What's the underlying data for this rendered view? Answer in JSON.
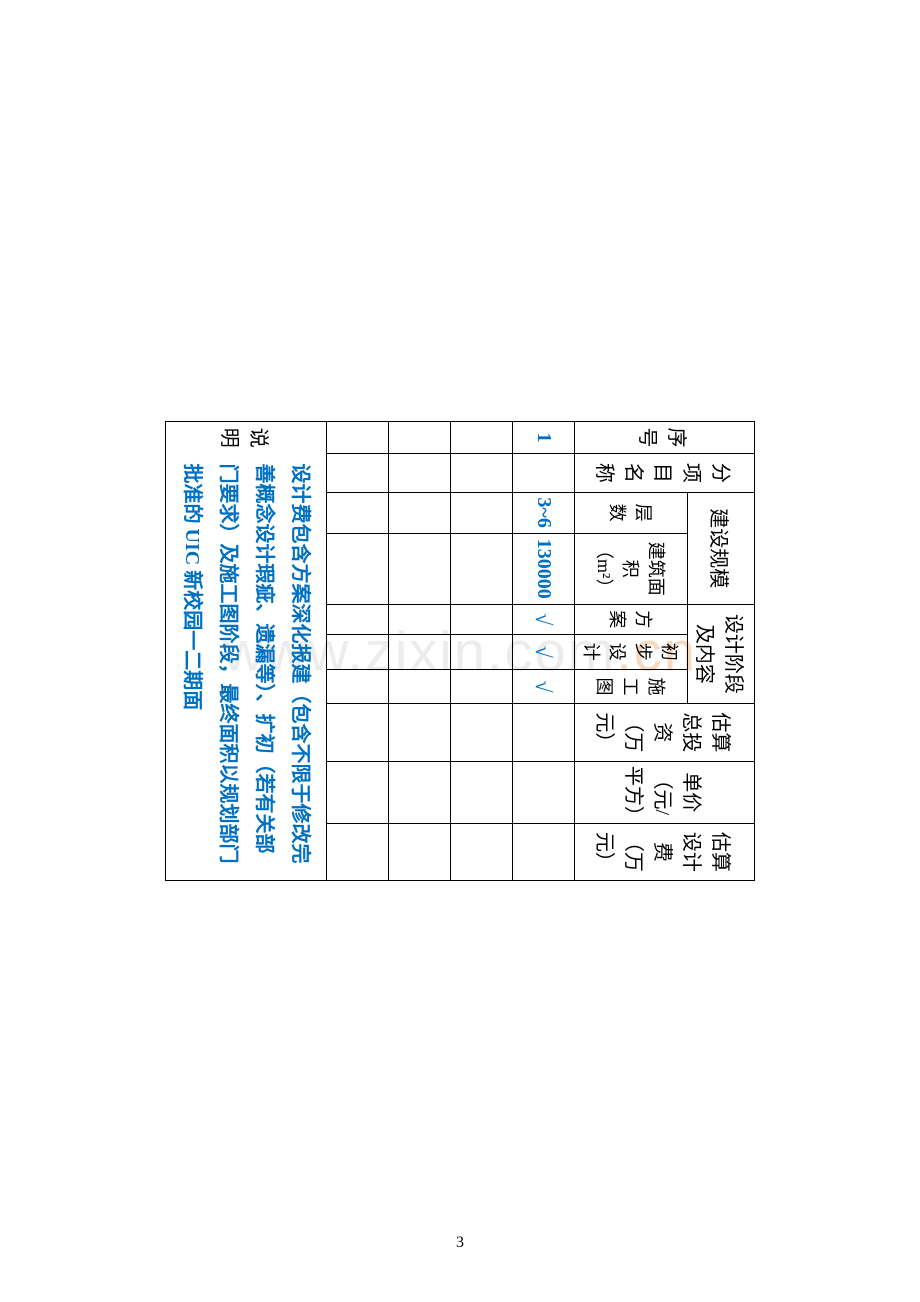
{
  "watermark": {
    "text_gray": "www.zixin.com",
    "text_orange": ".cn"
  },
  "headers": {
    "seq": "序号",
    "project_name": "分项目名称",
    "scale": "建设规模",
    "floors": "层数",
    "area": "建筑面积（m²）",
    "design_phase": "设计阶段及内容",
    "plan": "方案",
    "prelim_design": "初步设计",
    "construction_drawing": "施工图",
    "total_invest": "估算总投资（万元）",
    "unit_price": "单价（元/平方）",
    "design_fee": "估算设计费（万元）"
  },
  "rows": [
    {
      "seq": "1",
      "name": "",
      "floors": "3~6",
      "area": "130000",
      "plan": "√",
      "prelim": "√",
      "const": "√",
      "invest": "",
      "unit": "",
      "fee": ""
    }
  ],
  "note": {
    "label": "说明",
    "content": "设计费包含方案深化报建（包含不限于修改完善概念设计瑕疵、遗漏等）、扩初（若有关部门要求）及施工图阶段，最终面积以规划部门批准的 UIC 新校园一二期面"
  },
  "page_number": "3",
  "colors": {
    "blue": "#0070c0",
    "black": "#000000",
    "watermark_gray": "rgba(200,200,200,0.35)",
    "watermark_orange": "rgba(230,160,100,0.4)"
  }
}
